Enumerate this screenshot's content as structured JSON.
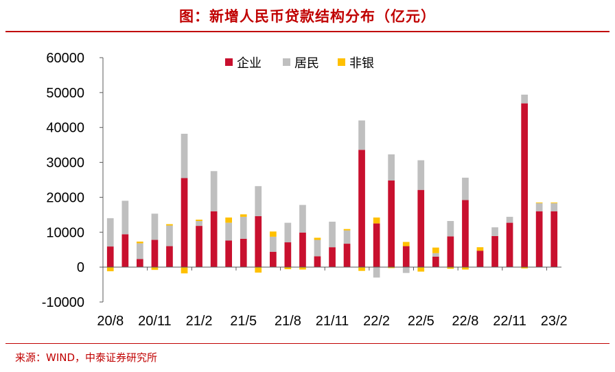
{
  "title": "图：新增人民币贷款结构分布（亿元）",
  "source": "来源：WIND，中泰证券研究所",
  "colors": {
    "corporate": "#c8102e",
    "household": "#bfbfbf",
    "nonbank": "#ffc000",
    "accent": "#c00000"
  },
  "chart_data": {
    "type": "bar",
    "stacked": true,
    "title": "新增人民币贷款结构分布（亿元）",
    "xlabel": "",
    "ylabel": "",
    "ylim": [
      -10000,
      60000
    ],
    "yticks": [
      "60000",
      "50000",
      "40000",
      "30000",
      "20000",
      "10000",
      "0",
      "-10000"
    ],
    "categories": [
      "20/8",
      "20/9",
      "20/10",
      "20/11",
      "20/12",
      "21/1",
      "21/2",
      "21/3",
      "21/4",
      "21/5",
      "21/6",
      "21/7",
      "21/8",
      "21/9",
      "21/10",
      "21/11",
      "21/12",
      "22/1",
      "22/2",
      "22/3",
      "22/4",
      "22/5",
      "22/6",
      "22/7",
      "22/8",
      "22/9",
      "22/10",
      "22/11",
      "22/12",
      "23/1",
      "23/2"
    ],
    "xtick_labels": [
      "20/8",
      "20/11",
      "21/2",
      "21/5",
      "21/8",
      "21/11",
      "22/2",
      "22/5",
      "22/8",
      "22/11",
      "23/2"
    ],
    "legend_position": "top",
    "series": [
      {
        "name": "企业",
        "values": [
          5900,
          9400,
          2300,
          7800,
          6000,
          25500,
          11800,
          16000,
          7600,
          8100,
          14600,
          4400,
          7100,
          9900,
          3100,
          5700,
          6700,
          33600,
          12500,
          24800,
          6000,
          22100,
          3000,
          8800,
          19200,
          4700,
          8900,
          12700,
          46900,
          16000,
          16000
        ]
      },
      {
        "name": "居民",
        "values": [
          8100,
          9600,
          4500,
          7500,
          5900,
          12700,
          1400,
          11500,
          5100,
          6300,
          8600,
          4300,
          5600,
          7900,
          4700,
          7300,
          3800,
          8400,
          -3000,
          7500,
          -1700,
          8500,
          1000,
          4400,
          6400,
          0,
          2500,
          1700,
          2500,
          2300,
          2300
        ]
      },
      {
        "name": "非银",
        "values": [
          -1200,
          0,
          500,
          -800,
          400,
          -1800,
          400,
          0,
          1500,
          700,
          -1600,
          1500,
          -600,
          -700,
          600,
          0,
          400,
          -1100,
          1700,
          -300,
          1200,
          -1300,
          1600,
          -500,
          -700,
          1000,
          0,
          0,
          -400,
          200,
          200
        ]
      }
    ]
  }
}
